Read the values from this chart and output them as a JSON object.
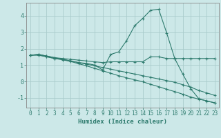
{
  "background_color": "#cce8e8",
  "grid_color": "#aacccc",
  "line_color": "#2e7b6e",
  "xlabel": "Humidex (Indice chaleur)",
  "xlim": [
    -0.5,
    23.5
  ],
  "ylim": [
    -1.6,
    4.8
  ],
  "yticks": [
    -1,
    0,
    1,
    2,
    3,
    4
  ],
  "xticks": [
    0,
    1,
    2,
    3,
    4,
    5,
    6,
    7,
    8,
    9,
    10,
    11,
    12,
    13,
    14,
    15,
    16,
    17,
    18,
    19,
    20,
    21,
    22,
    23
  ],
  "series": [
    {
      "x": [
        0,
        1,
        2,
        3,
        4,
        5,
        6,
        7,
        8,
        9,
        10,
        11,
        12,
        13,
        14,
        15,
        16,
        17,
        18,
        19,
        20,
        21,
        22,
        23
      ],
      "y": [
        1.6,
        1.65,
        1.55,
        1.45,
        1.4,
        1.35,
        1.3,
        1.25,
        1.2,
        1.15,
        1.2,
        1.2,
        1.2,
        1.2,
        1.2,
        1.5,
        1.5,
        1.4,
        1.4,
        1.4,
        1.4,
        1.4,
        1.4,
        1.4
      ]
    },
    {
      "x": [
        0,
        1,
        2,
        3,
        4,
        5,
        6,
        7,
        8,
        9,
        10,
        11,
        12,
        13,
        14,
        15,
        16,
        17,
        18,
        19,
        20,
        21,
        22,
        23
      ],
      "y": [
        1.6,
        1.65,
        1.55,
        1.45,
        1.35,
        1.25,
        1.15,
        1.1,
        1.0,
        0.7,
        1.65,
        1.8,
        2.5,
        3.4,
        3.85,
        4.35,
        4.4,
        2.95,
        1.4,
        0.45,
        -0.45,
        -1.05,
        -1.2,
        -1.3
      ]
    },
    {
      "x": [
        0,
        1,
        2,
        3,
        4,
        5,
        6,
        7,
        8,
        9,
        10,
        11,
        12,
        13,
        14,
        15,
        16,
        17,
        18,
        19,
        20,
        21,
        22,
        23
      ],
      "y": [
        1.6,
        1.6,
        1.5,
        1.4,
        1.35,
        1.25,
        1.15,
        1.05,
        0.95,
        0.85,
        0.75,
        0.65,
        0.55,
        0.45,
        0.35,
        0.25,
        0.15,
        0.05,
        -0.05,
        -0.2,
        -0.35,
        -0.55,
        -0.7,
        -0.85
      ]
    },
    {
      "x": [
        0,
        1,
        2,
        3,
        4,
        5,
        6,
        7,
        8,
        9,
        10,
        11,
        12,
        13,
        14,
        15,
        16,
        17,
        18,
        19,
        20,
        21,
        22,
        23
      ],
      "y": [
        1.6,
        1.62,
        1.52,
        1.4,
        1.32,
        1.22,
        1.08,
        0.95,
        0.8,
        0.65,
        0.5,
        0.35,
        0.22,
        0.1,
        -0.02,
        -0.18,
        -0.32,
        -0.48,
        -0.62,
        -0.78,
        -0.95,
        -1.08,
        -1.18,
        -1.32
      ]
    }
  ]
}
